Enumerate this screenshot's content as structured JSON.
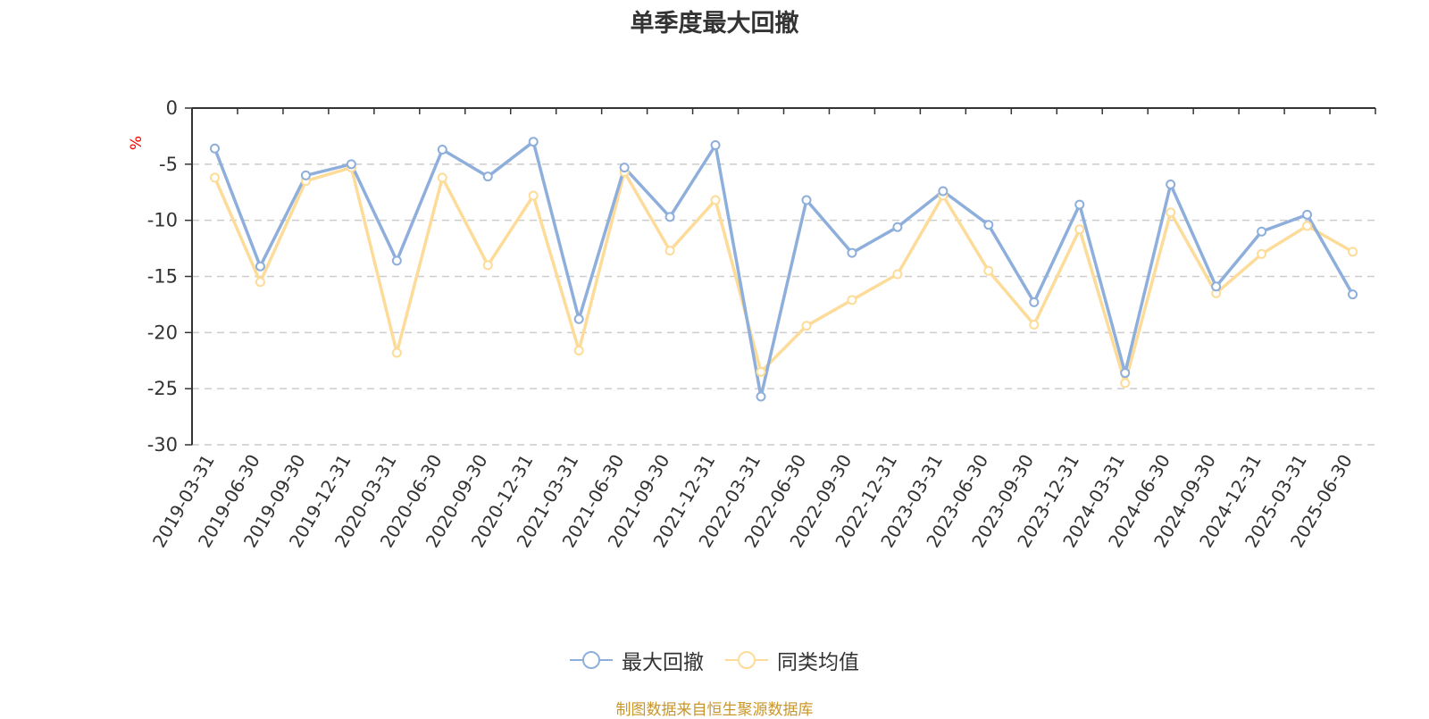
{
  "colors": {
    "series_max_drawdown": "#8eaedb",
    "series_peer_avg": "#fddb98",
    "axis": "#333333",
    "grid": "#cccccc",
    "unit_label": "#ff0000",
    "source_note": "#c8962a"
  },
  "chart_data": {
    "type": "line",
    "title": "单季度最大回撤",
    "ylabel": "%",
    "xlabel": "",
    "ylim": [
      -30,
      0
    ],
    "yticks": [
      0,
      -5,
      -10,
      -15,
      -20,
      -25,
      -30
    ],
    "y_axis_inverted": true,
    "grid": "horizontal dashed",
    "legend_position": "bottom-center",
    "categories": [
      "2019-03-31",
      "2019-06-30",
      "2019-09-30",
      "2019-12-31",
      "2020-03-31",
      "2020-06-30",
      "2020-09-30",
      "2020-12-31",
      "2021-03-31",
      "2021-06-30",
      "2021-09-30",
      "2021-12-31",
      "2022-03-31",
      "2022-06-30",
      "2022-09-30",
      "2022-12-31",
      "2023-03-31",
      "2023-06-30",
      "2023-09-30",
      "2023-12-31",
      "2024-03-31",
      "2024-06-30",
      "2024-09-30",
      "2024-12-31",
      "2025-03-31",
      "2025-06-30"
    ],
    "series": [
      {
        "name": "最大回撤",
        "color": "#8eaedb",
        "values": [
          -3.6,
          -14.1,
          -6.0,
          -5.0,
          -13.6,
          -3.7,
          -6.1,
          -3.0,
          -18.8,
          -5.3,
          -9.7,
          -3.3,
          -25.7,
          -8.2,
          -12.9,
          -10.6,
          -7.4,
          -10.4,
          -17.3,
          -8.6,
          -23.6,
          -6.8,
          -15.9,
          -11.0,
          -9.5,
          -16.6
        ]
      },
      {
        "name": "同类均值",
        "color": "#fddb98",
        "values": [
          -6.2,
          -15.5,
          -6.5,
          -5.3,
          -21.8,
          -6.2,
          -14.0,
          -7.8,
          -21.6,
          -5.7,
          -12.7,
          -8.2,
          -23.5,
          -19.4,
          -17.1,
          -14.8,
          -7.8,
          -14.5,
          -19.3,
          -10.8,
          -24.5,
          -9.3,
          -16.5,
          -13.0,
          -10.5,
          -12.8
        ]
      }
    ]
  },
  "legend": {
    "items": [
      {
        "label": "最大回撤"
      },
      {
        "label": "同类均值"
      }
    ]
  },
  "source_note": "制图数据来自恒生聚源数据库"
}
